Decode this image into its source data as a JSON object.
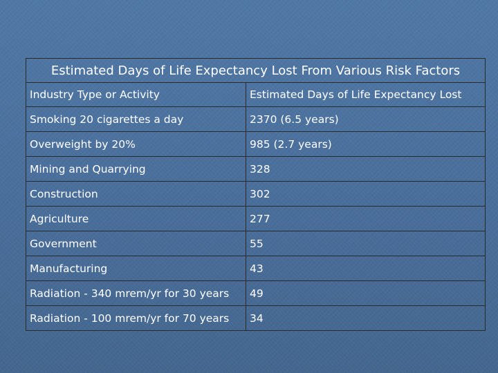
{
  "table": {
    "title": "Estimated Days of Life Expectancy Lost From Various Risk Factors",
    "headers": {
      "activity": "Industry Type or Activity",
      "days": "Estimated Days of Life Expectancy Lost"
    },
    "rows": [
      {
        "activity": "Smoking 20 cigarettes a day",
        "days": "2370 (6.5 years)"
      },
      {
        "activity": "Overweight by 20%",
        "days": "985 (2.7 years)"
      },
      {
        "activity": "Mining and Quarrying",
        "days": "328"
      },
      {
        "activity": "Construction",
        "days": "302"
      },
      {
        "activity": "Agriculture",
        "days": "277"
      },
      {
        "activity": "Government",
        "days": "55"
      },
      {
        "activity": "Manufacturing",
        "days": "43"
      },
      {
        "activity": "Radiation - 340 mrem/yr for 30 years",
        "days": "49"
      },
      {
        "activity": "Radiation - 100 mrem/yr for 70 years",
        "days": "34"
      }
    ]
  },
  "colors": {
    "background": "#4a6e9a",
    "text": "#ffffff",
    "grid": "#2a2a2a"
  }
}
